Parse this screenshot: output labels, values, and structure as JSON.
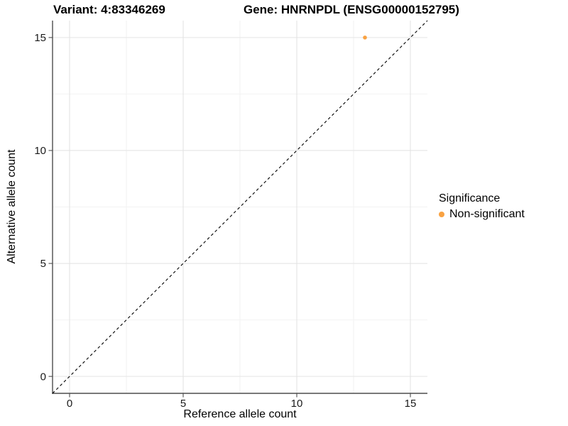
{
  "figure": {
    "title_left": "Variant: 4:83346269",
    "title_right": "Gene: HNRNPDL (ENSG00000152795)"
  },
  "axes": {
    "x_label": "Reference allele count",
    "y_label": "Alternative allele count"
  },
  "legend": {
    "title": "Significance",
    "items": [
      {
        "label": "Non-significant",
        "color": "#F9A242"
      }
    ]
  },
  "chart_data": {
    "type": "scatter",
    "title_left": "Variant: 4:83346269",
    "title_right": "Gene: HNRNPDL (ENSG00000152795)",
    "xlabel": "Reference allele count",
    "ylabel": "Alternative allele count",
    "xlim": [
      -0.75,
      15.75
    ],
    "ylim": [
      -0.75,
      15.75
    ],
    "x_major_ticks": [
      0,
      5,
      10,
      15
    ],
    "y_major_ticks": [
      0,
      5,
      10,
      15
    ],
    "x_minor_ticks": [
      2.5,
      7.5,
      12.5
    ],
    "y_minor_ticks": [
      2.5,
      7.5,
      12.5
    ],
    "grid": true,
    "legend_title": "Significance",
    "legend_position": "right",
    "series": [
      {
        "name": "Non-significant",
        "color": "#F9A242",
        "points": [
          {
            "x": 13,
            "y": 15
          }
        ]
      }
    ],
    "reference_line": {
      "type": "identity",
      "slope": 1,
      "intercept": 0,
      "style": "dashed",
      "color": "#000000"
    }
  },
  "style_colors": {
    "background": "#FFFFFF",
    "grid_major": "#E4E4E4",
    "grid_minor": "#F2F2F2",
    "axis_line": "#4D4D4D",
    "tick_text": "#1A1A1A"
  }
}
